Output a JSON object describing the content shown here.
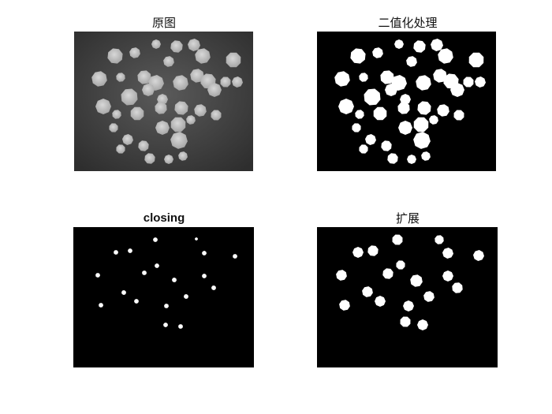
{
  "figure": {
    "panels": [
      {
        "title": "原图",
        "image": "grayscale-photo-of-round-particles"
      },
      {
        "title": "二值化处理",
        "image": "binarized-particles"
      },
      {
        "title": "closing",
        "image": "closing-result-small-blobs"
      },
      {
        "title": "扩展",
        "image": "dilated-blobs"
      }
    ]
  },
  "colors": {
    "background": "#ffffff",
    "axes_black": "#000000",
    "foreground_white": "#ffffff",
    "photo_background": "#4a4a4a"
  }
}
